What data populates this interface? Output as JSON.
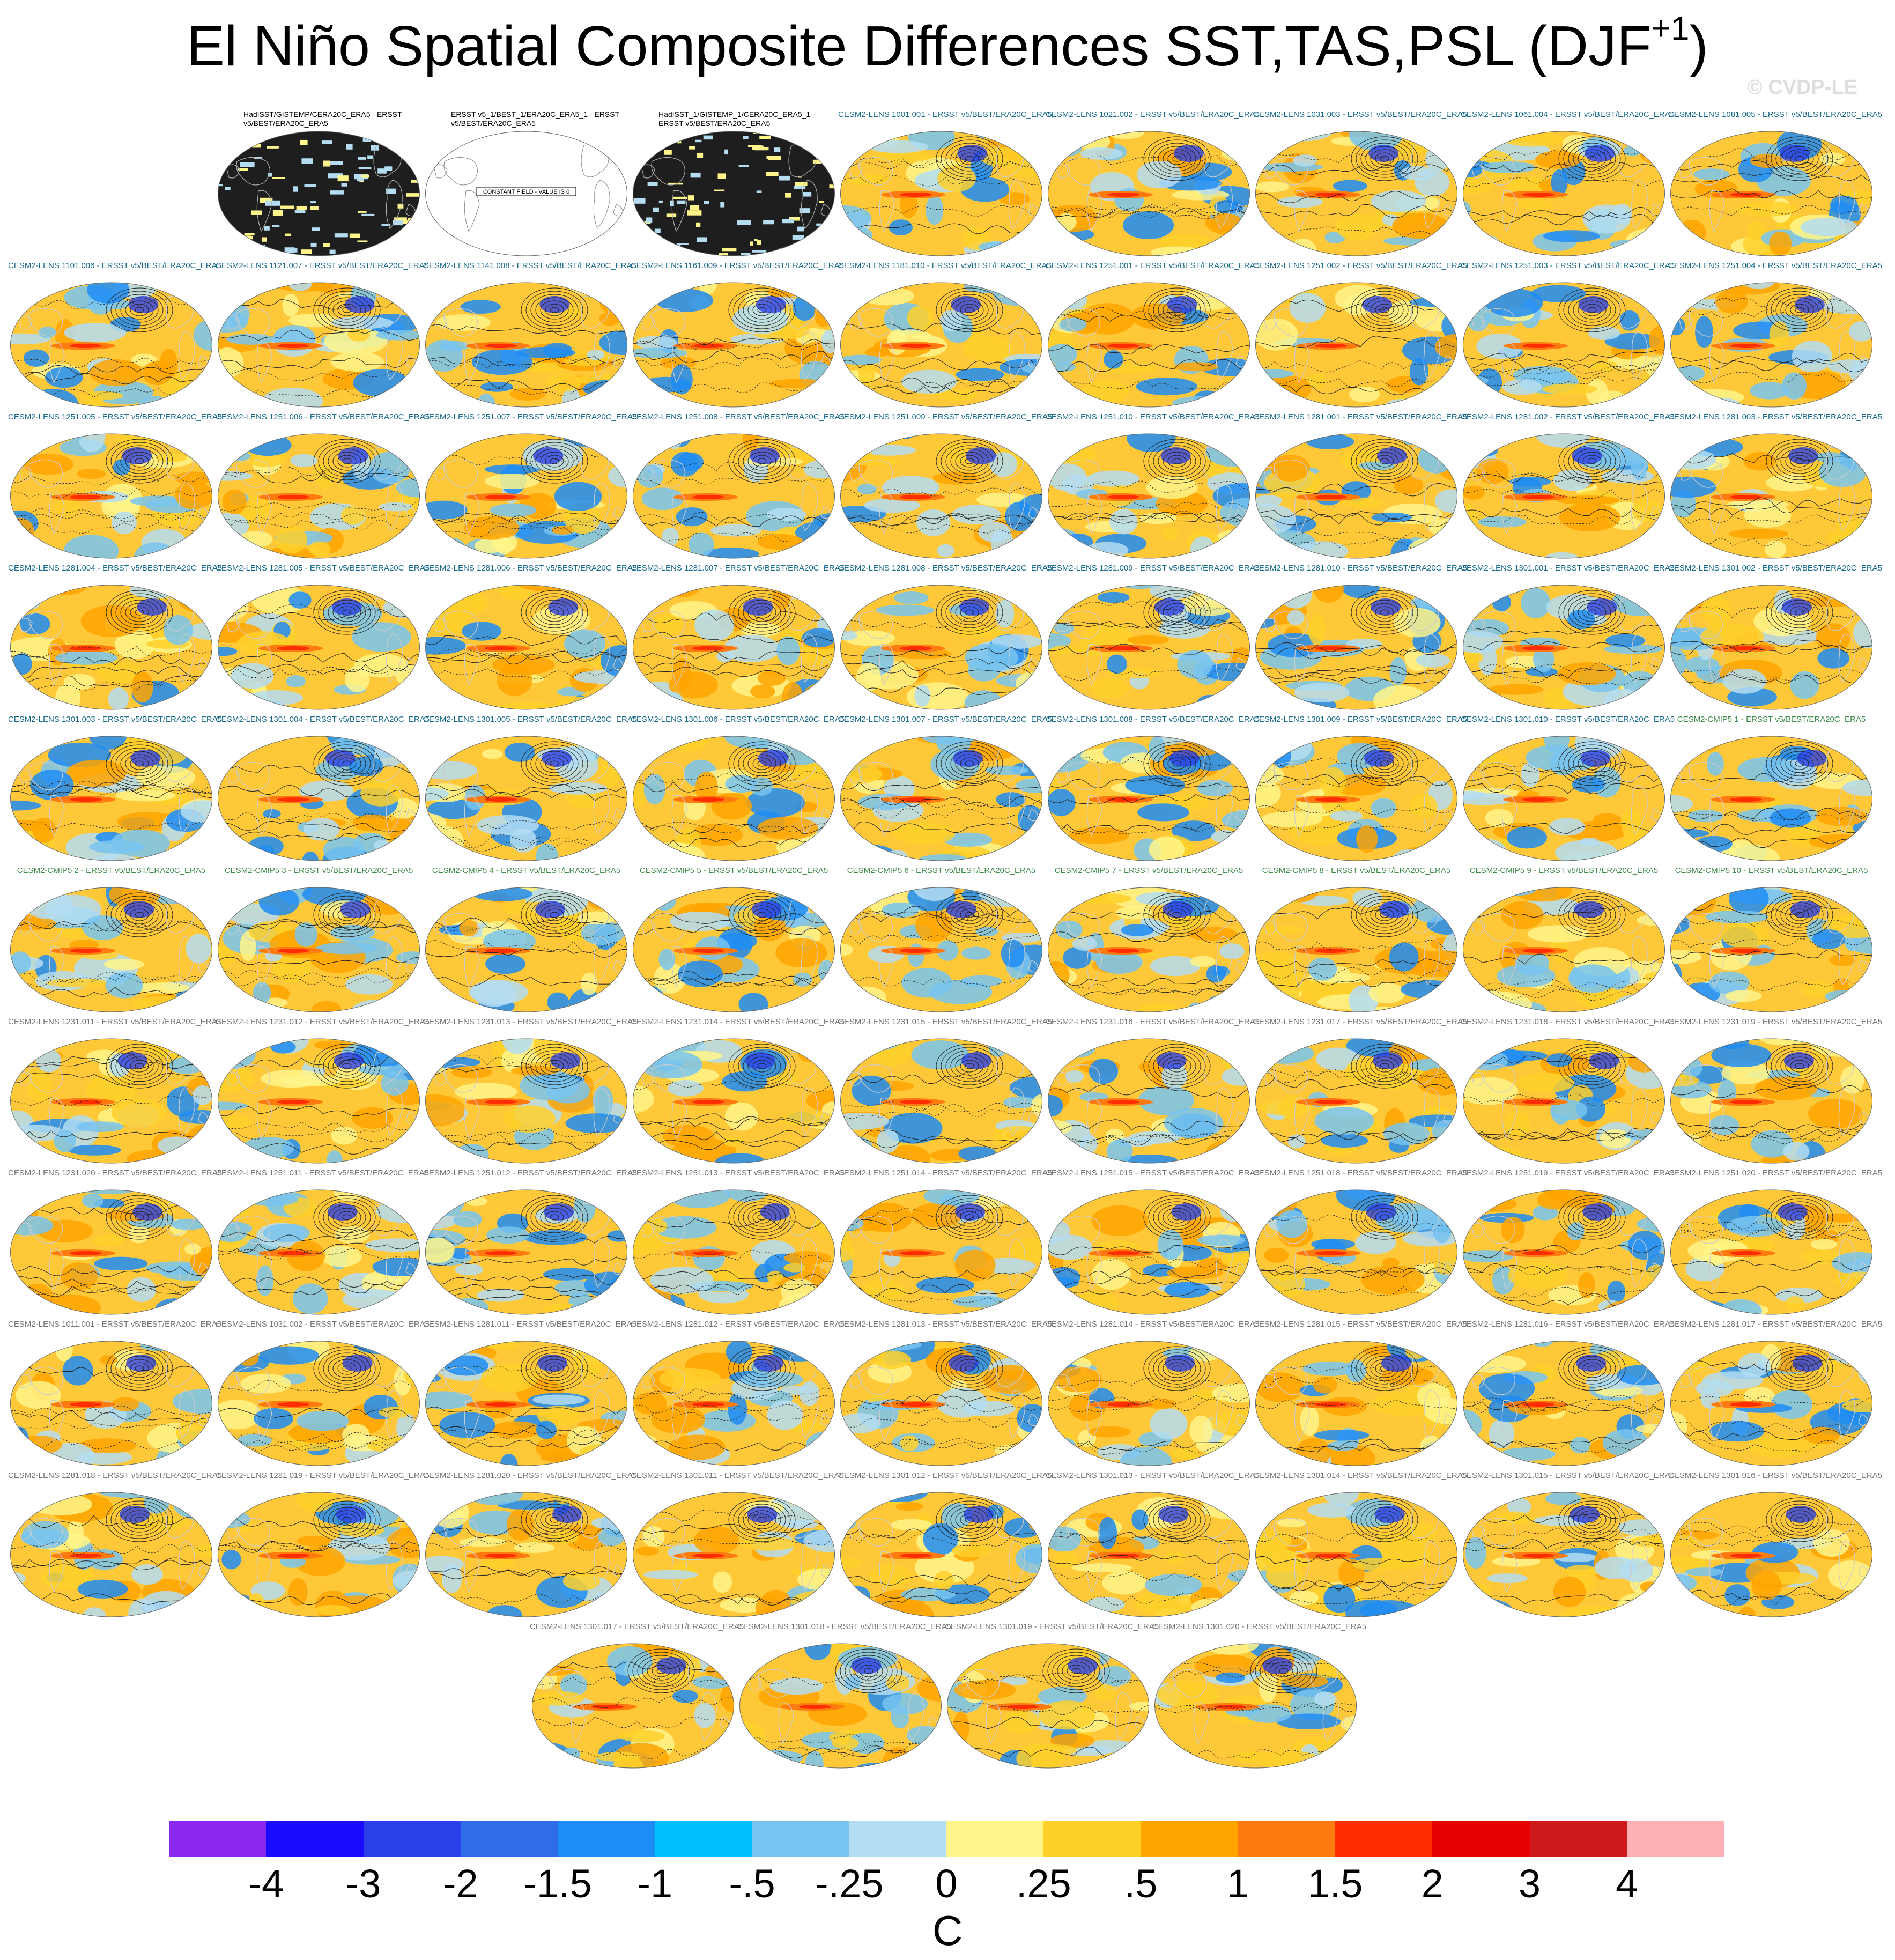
{
  "title": {
    "main": "El Niño Spatial Composite Differences SST,TAS,PSL (DJF",
    "superscript": "+1",
    "close": ")"
  },
  "watermark": "© CVDP-LE",
  "colors": {
    "lens_label": "#1a6b8a",
    "cmip_label": "#3d8a4a",
    "gray_label": "#777777",
    "ocean_warm": "#ffc838",
    "ocean_cool": "#7cc6f0",
    "land_outline": "#cccccc"
  },
  "panels": [
    {
      "label": "HadISST/GISTEMP/CERA20C_ERA5 - ERSST v5/BEST/ERA20C_ERA5",
      "kind": "obs-dark"
    },
    {
      "label": "ERSST v5_1/BEST_1/ERA20C_ERA5_1 - ERSST v5/BEST/ERA20C_ERA5",
      "kind": "obs-blank",
      "note": "CONSTANT FIELD - VALUE IS 0"
    },
    {
      "label": "HadISST_1/GISTEMP_1/CERA20C_ERA5_1 - ERSST v5/BEST/ERA20C_ERA5",
      "kind": "obs-dark"
    },
    {
      "label": "CESM2-LENS 1001.001 - ERSST v5/BEST/ERA20C_ERA5",
      "kind": "lens"
    },
    {
      "label": "CESM2-LENS 1021.002 - ERSST v5/BEST/ERA20C_ERA5",
      "kind": "lens"
    },
    {
      "label": "CESM2-LENS 1031.003 - ERSST v5/BEST/ERA20C_ERA5",
      "kind": "lens"
    },
    {
      "label": "CESM2-LENS 1061.004 - ERSST v5/BEST/ERA20C_ERA5",
      "kind": "lens"
    },
    {
      "label": "CESM2-LENS 1081.005 - ERSST v5/BEST/ERA20C_ERA5",
      "kind": "lens"
    },
    {
      "label": "CESM2-LENS 1101.006 - ERSST v5/BEST/ERA20C_ERA5",
      "kind": "lens"
    },
    {
      "label": "CESM2-LENS 1121.007 - ERSST v5/BEST/ERA20C_ERA5",
      "kind": "lens"
    },
    {
      "label": "CESM2-LENS 1141.008 - ERSST v5/BEST/ERA20C_ERA5",
      "kind": "lens"
    },
    {
      "label": "CESM2-LENS 1161.009 - ERSST v5/BEST/ERA20C_ERA5",
      "kind": "lens"
    },
    {
      "label": "CESM2-LENS 1181.010 - ERSST v5/BEST/ERA20C_ERA5",
      "kind": "lens"
    },
    {
      "label": "CESM2-LENS 1251.001 - ERSST v5/BEST/ERA20C_ERA5",
      "kind": "lens"
    },
    {
      "label": "CESM2-LENS 1251.002 - ERSST v5/BEST/ERA20C_ERA5",
      "kind": "lens"
    },
    {
      "label": "CESM2-LENS 1251.003 - ERSST v5/BEST/ERA20C_ERA5",
      "kind": "lens"
    },
    {
      "label": "CESM2-LENS 1251.004 - ERSST v5/BEST/ERA20C_ERA5",
      "kind": "lens"
    },
    {
      "label": "CESM2-LENS 1251.005 - ERSST v5/BEST/ERA20C_ERA5",
      "kind": "lens"
    },
    {
      "label": "CESM2-LENS 1251.006 - ERSST v5/BEST/ERA20C_ERA5",
      "kind": "lens"
    },
    {
      "label": "CESM2-LENS 1251.007 - ERSST v5/BEST/ERA20C_ERA5",
      "kind": "lens"
    },
    {
      "label": "CESM2-LENS 1251.008 - ERSST v5/BEST/ERA20C_ERA5",
      "kind": "lens"
    },
    {
      "label": "CESM2-LENS 1251.009 - ERSST v5/BEST/ERA20C_ERA5",
      "kind": "lens"
    },
    {
      "label": "CESM2-LENS 1251.010 - ERSST v5/BEST/ERA20C_ERA5",
      "kind": "lens"
    },
    {
      "label": "CESM2-LENS 1281.001 - ERSST v5/BEST/ERA20C_ERA5",
      "kind": "lens"
    },
    {
      "label": "CESM2-LENS 1281.002 - ERSST v5/BEST/ERA20C_ERA5",
      "kind": "lens"
    },
    {
      "label": "CESM2-LENS 1281.003 - ERSST v5/BEST/ERA20C_ERA5",
      "kind": "lens"
    },
    {
      "label": "CESM2-LENS 1281.004 - ERSST v5/BEST/ERA20C_ERA5",
      "kind": "lens"
    },
    {
      "label": "CESM2-LENS 1281.005 - ERSST v5/BEST/ERA20C_ERA5",
      "kind": "lens"
    },
    {
      "label": "CESM2-LENS 1281.006 - ERSST v5/BEST/ERA20C_ERA5",
      "kind": "lens"
    },
    {
      "label": "CESM2-LENS 1281.007 - ERSST v5/BEST/ERA20C_ERA5",
      "kind": "lens"
    },
    {
      "label": "CESM2-LENS 1281.008 - ERSST v5/BEST/ERA20C_ERA5",
      "kind": "lens"
    },
    {
      "label": "CESM2-LENS 1281.009 - ERSST v5/BEST/ERA20C_ERA5",
      "kind": "lens"
    },
    {
      "label": "CESM2-LENS 1281.010 - ERSST v5/BEST/ERA20C_ERA5",
      "kind": "lens"
    },
    {
      "label": "CESM2-LENS 1301.001 - ERSST v5/BEST/ERA20C_ERA5",
      "kind": "lens"
    },
    {
      "label": "CESM2-LENS 1301.002 - ERSST v5/BEST/ERA20C_ERA5",
      "kind": "lens"
    },
    {
      "label": "CESM2-LENS 1301.003 - ERSST v5/BEST/ERA20C_ERA5",
      "kind": "lens"
    },
    {
      "label": "CESM2-LENS 1301.004 - ERSST v5/BEST/ERA20C_ERA5",
      "kind": "lens"
    },
    {
      "label": "CESM2-LENS 1301.005 - ERSST v5/BEST/ERA20C_ERA5",
      "kind": "lens"
    },
    {
      "label": "CESM2-LENS 1301.006 - ERSST v5/BEST/ERA20C_ERA5",
      "kind": "lens"
    },
    {
      "label": "CESM2-LENS 1301.007 - ERSST v5/BEST/ERA20C_ERA5",
      "kind": "lens"
    },
    {
      "label": "CESM2-LENS 1301.008 - ERSST v5/BEST/ERA20C_ERA5",
      "kind": "lens"
    },
    {
      "label": "CESM2-LENS 1301.009 - ERSST v5/BEST/ERA20C_ERA5",
      "kind": "lens"
    },
    {
      "label": "CESM2-LENS 1301.010 - ERSST v5/BEST/ERA20C_ERA5",
      "kind": "lens"
    },
    {
      "label": "CESM2-CMIP5 1 - ERSST v5/BEST/ERA20C_ERA5",
      "kind": "cmip"
    },
    {
      "label": "CESM2-CMIP5 2 - ERSST v5/BEST/ERA20C_ERA5",
      "kind": "cmip"
    },
    {
      "label": "CESM2-CMIP5 3 - ERSST v5/BEST/ERA20C_ERA5",
      "kind": "cmip"
    },
    {
      "label": "CESM2-CMIP5 4 - ERSST v5/BEST/ERA20C_ERA5",
      "kind": "cmip"
    },
    {
      "label": "CESM2-CMIP5 5 - ERSST v5/BEST/ERA20C_ERA5",
      "kind": "cmip"
    },
    {
      "label": "CESM2-CMIP5 6 - ERSST v5/BEST/ERA20C_ERA5",
      "kind": "cmip"
    },
    {
      "label": "CESM2-CMIP5 7 - ERSST v5/BEST/ERA20C_ERA5",
      "kind": "cmip"
    },
    {
      "label": "CESM2-CMIP5 8 - ERSST v5/BEST/ERA20C_ERA5",
      "kind": "cmip"
    },
    {
      "label": "CESM2-CMIP5 9 - ERSST v5/BEST/ERA20C_ERA5",
      "kind": "cmip"
    },
    {
      "label": "CESM2-CMIP5 10 - ERSST v5/BEST/ERA20C_ERA5",
      "kind": "cmip"
    },
    {
      "label": "CESM2-LENS 1231.011 - ERSST v5/BEST/ERA20C_ERA5",
      "kind": "gray"
    },
    {
      "label": "CESM2-LENS 1231.012 - ERSST v5/BEST/ERA20C_ERA5",
      "kind": "gray"
    },
    {
      "label": "CESM2-LENS 1231.013 - ERSST v5/BEST/ERA20C_ERA5",
      "kind": "gray"
    },
    {
      "label": "CESM2-LENS 1231.014 - ERSST v5/BEST/ERA20C_ERA5",
      "kind": "gray"
    },
    {
      "label": "CESM2-LENS 1231.015 - ERSST v5/BEST/ERA20C_ERA5",
      "kind": "gray"
    },
    {
      "label": "CESM2-LENS 1231.016 - ERSST v5/BEST/ERA20C_ERA5",
      "kind": "gray"
    },
    {
      "label": "CESM2-LENS 1231.017 - ERSST v5/BEST/ERA20C_ERA5",
      "kind": "gray"
    },
    {
      "label": "CESM2-LENS 1231.018 - ERSST v5/BEST/ERA20C_ERA5",
      "kind": "gray"
    },
    {
      "label": "CESM2-LENS 1231.019 - ERSST v5/BEST/ERA20C_ERA5",
      "kind": "gray"
    },
    {
      "label": "CESM2-LENS 1231.020 - ERSST v5/BEST/ERA20C_ERA5",
      "kind": "gray"
    },
    {
      "label": "CESM2-LENS 1251.011 - ERSST v5/BEST/ERA20C_ERA5",
      "kind": "gray"
    },
    {
      "label": "CESM2-LENS 1251.012 - ERSST v5/BEST/ERA20C_ERA5",
      "kind": "gray"
    },
    {
      "label": "CESM2-LENS 1251.013 - ERSST v5/BEST/ERA20C_ERA5",
      "kind": "gray"
    },
    {
      "label": "CESM2-LENS 1251.014 - ERSST v5/BEST/ERA20C_ERA5",
      "kind": "gray"
    },
    {
      "label": "CESM2-LENS 1251.015 - ERSST v5/BEST/ERA20C_ERA5",
      "kind": "gray"
    },
    {
      "label": "CESM2-LENS 1251.018 - ERSST v5/BEST/ERA20C_ERA5",
      "kind": "gray"
    },
    {
      "label": "CESM2-LENS 1251.019 - ERSST v5/BEST/ERA20C_ERA5",
      "kind": "gray"
    },
    {
      "label": "CESM2-LENS 1251.020 - ERSST v5/BEST/ERA20C_ERA5",
      "kind": "gray"
    },
    {
      "label": "CESM2-LENS 1011.001 - ERSST v5/BEST/ERA20C_ERA5",
      "kind": "gray"
    },
    {
      "label": "CESM2-LENS 1031.002 - ERSST v5/BEST/ERA20C_ERA5",
      "kind": "gray"
    },
    {
      "label": "CESM2-LENS 1281.011 - ERSST v5/BEST/ERA20C_ERA5",
      "kind": "gray"
    },
    {
      "label": "CESM2-LENS 1281.012 - ERSST v5/BEST/ERA20C_ERA5",
      "kind": "gray"
    },
    {
      "label": "CESM2-LENS 1281.013 - ERSST v5/BEST/ERA20C_ERA5",
      "kind": "gray"
    },
    {
      "label": "CESM2-LENS 1281.014 - ERSST v5/BEST/ERA20C_ERA5",
      "kind": "gray"
    },
    {
      "label": "CESM2-LENS 1281.015 - ERSST v5/BEST/ERA20C_ERA5",
      "kind": "gray"
    },
    {
      "label": "CESM2-LENS 1281.016 - ERSST v5/BEST/ERA20C_ERA5",
      "kind": "gray"
    },
    {
      "label": "CESM2-LENS 1281.017 - ERSST v5/BEST/ERA20C_ERA5",
      "kind": "gray"
    },
    {
      "label": "CESM2-LENS 1281.018 - ERSST v5/BEST/ERA20C_ERA5",
      "kind": "gray"
    },
    {
      "label": "CESM2-LENS 1281.019 - ERSST v5/BEST/ERA20C_ERA5",
      "kind": "gray"
    },
    {
      "label": "CESM2-LENS 1281.020 - ERSST v5/BEST/ERA20C_ERA5",
      "kind": "gray"
    },
    {
      "label": "CESM2-LENS 1301.011 - ERSST v5/BEST/ERA20C_ERA5",
      "kind": "gray"
    },
    {
      "label": "CESM2-LENS 1301.012 - ERSST v5/BEST/ERA20C_ERA5",
      "kind": "gray"
    },
    {
      "label": "CESM2-LENS 1301.013 - ERSST v5/BEST/ERA20C_ERA5",
      "kind": "gray"
    },
    {
      "label": "CESM2-LENS 1301.014 - ERSST v5/BEST/ERA20C_ERA5",
      "kind": "gray"
    },
    {
      "label": "CESM2-LENS 1301.015 - ERSST v5/BEST/ERA20C_ERA5",
      "kind": "gray"
    },
    {
      "label": "CESM2-LENS 1301.016 - ERSST v5/BEST/ERA20C_ERA5",
      "kind": "gray"
    },
    {
      "label": "CESM2-LENS 1301.017 - ERSST v5/BEST/ERA20C_ERA5",
      "kind": "gray"
    },
    {
      "label": "CESM2-LENS 1301.018 - ERSST v5/BEST/ERA20C_ERA5",
      "kind": "gray"
    },
    {
      "label": "CESM2-LENS 1301.019 - ERSST v5/BEST/ERA20C_ERA5",
      "kind": "gray"
    },
    {
      "label": "CESM2-LENS 1301.020 - ERSST v5/BEST/ERA20C_ERA5",
      "kind": "gray"
    }
  ],
  "colorbar": {
    "colors": [
      "#8a28f0",
      "#1a0dff",
      "#2a40e8",
      "#2f6de8",
      "#1e8cf5",
      "#00bfff",
      "#78c4f0",
      "#b4ddf2",
      "#fff58a",
      "#ffd02a",
      "#ffa500",
      "#ff7b10",
      "#ff2d00",
      "#e60000",
      "#cc1a1a",
      "#ffb0b4"
    ],
    "ticks": [
      "-4",
      "-3",
      "-2",
      "-1.5",
      "-1",
      "-.5",
      "-.25",
      "0",
      ".25",
      ".5",
      "1",
      "1.5",
      "2",
      "3",
      "4"
    ],
    "unit": "C"
  }
}
